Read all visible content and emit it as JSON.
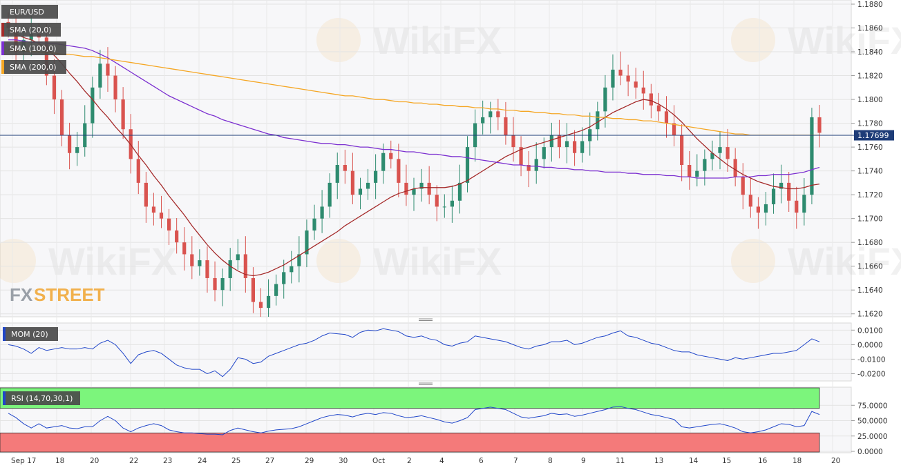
{
  "symbol": "EUR/USD",
  "logo": {
    "fx": "FX",
    "street": "STREET"
  },
  "watermark": "WikiFX",
  "indicators": {
    "sma20": {
      "label": "SMA (20,0)",
      "color": "#a52a2a"
    },
    "sma100": {
      "label": "SMA (100,0)",
      "color": "#7b2fd0"
    },
    "sma200": {
      "label": "SMA (200,0)",
      "color": "#f5a623"
    },
    "mom": {
      "label": "MOM (20)",
      "color": "#2046c9"
    },
    "rsi": {
      "label": "RSI (14,70,30,1)",
      "color": "#2046c9",
      "overbought_color": "#7cf57c",
      "oversold_color": "#f47a7a"
    }
  },
  "colors": {
    "up": "#2e8b6f",
    "down": "#d9534f",
    "current_price_line": "#1e3c78"
  },
  "current_price": {
    "label": "1.17699",
    "value": 1.17699
  },
  "x_labels": [
    "Sep 17",
    "18",
    "20",
    "22",
    "23",
    "24",
    "25",
    "27",
    "29",
    "30",
    "Oct",
    "2",
    "4",
    "6",
    "7",
    "8",
    "9",
    "11",
    "13",
    "14",
    "15",
    "16",
    "18",
    "20"
  ],
  "chart_data": [
    {
      "type": "candlestick",
      "title": "EUR/USD",
      "ylim": [
        1.161,
        1.188
      ],
      "y_ticks": [
        "1.1880",
        "1.1860",
        "1.1840",
        "1.1820",
        "1.1800",
        "1.1780",
        "1.1760",
        "1.1740",
        "1.1720",
        "1.1700",
        "1.1680",
        "1.1660",
        "1.1640",
        "1.1620"
      ],
      "grid": true,
      "close": [
        1.186,
        1.184,
        1.185,
        1.1855,
        1.1852,
        1.182,
        1.18,
        1.177,
        1.1755,
        1.176,
        1.178,
        1.181,
        1.183,
        1.182,
        1.18,
        1.1775,
        1.175,
        1.173,
        1.171,
        1.1705,
        1.17,
        1.169,
        1.168,
        1.167,
        1.166,
        1.1665,
        1.165,
        1.164,
        1.165,
        1.1665,
        1.167,
        1.165,
        1.163,
        1.1625,
        1.1635,
        1.1645,
        1.1655,
        1.166,
        1.167,
        1.169,
        1.17,
        1.171,
        1.173,
        1.1745,
        1.174,
        1.172,
        1.1725,
        1.173,
        1.174,
        1.1755,
        1.175,
        1.173,
        1.172,
        1.1725,
        1.173,
        1.172,
        1.171,
        1.171,
        1.1715,
        1.173,
        1.176,
        1.178,
        1.1785,
        1.179,
        1.1785,
        1.177,
        1.176,
        1.1745,
        1.174,
        1.175,
        1.176,
        1.177,
        1.176,
        1.1765,
        1.1755,
        1.1765,
        1.1775,
        1.179,
        1.181,
        1.1825,
        1.182,
        1.1815,
        1.181,
        1.1805,
        1.1795,
        1.179,
        1.178,
        1.177,
        1.1745,
        1.1735,
        1.174,
        1.175,
        1.1755,
        1.176,
        1.175,
        1.1735,
        1.172,
        1.171,
        1.1705,
        1.1712,
        1.1725,
        1.173,
        1.1715,
        1.1705,
        1.172,
        1.1785,
        1.1772
      ],
      "series": [
        {
          "name": "SMA (20,0)",
          "values": [
            1.1858,
            1.1855,
            1.1852,
            1.185,
            1.1847,
            1.1843,
            1.1837,
            1.183,
            1.1822,
            1.1815,
            1.1807,
            1.18,
            1.1792,
            1.1785,
            1.1777,
            1.177,
            1.1762,
            1.1753,
            1.1745,
            1.1736,
            1.1728,
            1.1719,
            1.1711,
            1.1703,
            1.1694,
            1.1686,
            1.1678,
            1.1671,
            1.1665,
            1.166,
            1.1656,
            1.1653,
            1.1652,
            1.1653,
            1.1655,
            1.1658,
            1.1661,
            1.1665,
            1.1669,
            1.1673,
            1.1677,
            1.1681,
            1.1685,
            1.1689,
            1.1694,
            1.1698,
            1.1702,
            1.1706,
            1.171,
            1.1714,
            1.1718,
            1.1721,
            1.1723,
            1.1725,
            1.1726,
            1.1726,
            1.1726,
            1.1726,
            1.1727,
            1.1729,
            1.1732,
            1.1736,
            1.174,
            1.1744,
            1.1748,
            1.1752,
            1.1755,
            1.1758,
            1.176,
            1.1762,
            1.1764,
            1.1766,
            1.1768,
            1.177,
            1.1772,
            1.1774,
            1.1777,
            1.1781,
            1.1785,
            1.1789,
            1.1792,
            1.1795,
            1.1798,
            1.18,
            1.1799,
            1.1796,
            1.1792,
            1.1787,
            1.1781,
            1.1774,
            1.1767,
            1.1761,
            1.1755,
            1.175,
            1.1745,
            1.1741,
            1.1737,
            1.1734,
            1.1731,
            1.1729,
            1.1727,
            1.1726,
            1.1725,
            1.1725,
            1.1726,
            1.1728,
            1.1729
          ]
        },
        {
          "name": "SMA (100,0)",
          "values": [
            1.185,
            1.185,
            1.1849,
            1.1848,
            1.1848,
            1.1847,
            1.1847,
            1.1846,
            1.1845,
            1.1844,
            1.1843,
            1.1841,
            1.1838,
            1.1835,
            1.1831,
            1.1827,
            1.1823,
            1.1819,
            1.1815,
            1.1811,
            1.1807,
            1.1803,
            1.18,
            1.1797,
            1.1794,
            1.1791,
            1.1788,
            1.1786,
            1.1783,
            1.1781,
            1.1779,
            1.1777,
            1.1775,
            1.1773,
            1.1771,
            1.177,
            1.1768,
            1.1767,
            1.1766,
            1.1765,
            1.1764,
            1.1763,
            1.1763,
            1.1762,
            1.1762,
            1.1761,
            1.176,
            1.176,
            1.1759,
            1.1758,
            1.1758,
            1.1757,
            1.1756,
            1.1756,
            1.1755,
            1.1754,
            1.1754,
            1.1753,
            1.1752,
            1.1752,
            1.1751,
            1.175,
            1.1749,
            1.1748,
            1.1747,
            1.1746,
            1.1745,
            1.1745,
            1.1744,
            1.1744,
            1.1743,
            1.1743,
            1.1742,
            1.1742,
            1.1741,
            1.1741,
            1.174,
            1.174,
            1.1739,
            1.1739,
            1.1739,
            1.1738,
            1.1738,
            1.1737,
            1.1737,
            1.1737,
            1.1736,
            1.1736,
            1.1735,
            1.1735,
            1.1734,
            1.1734,
            1.1734,
            1.1734,
            1.1734,
            1.1735,
            1.1735,
            1.1735,
            1.1736,
            1.1736,
            1.1737,
            1.1737,
            1.1737,
            1.1738,
            1.1739,
            1.1741,
            1.1743
          ]
        },
        {
          "name": "SMA (200,0)",
          "values": [
            1.1842,
            1.1841,
            1.1841,
            1.184,
            1.184,
            1.1839,
            1.1839,
            1.1838,
            1.1838,
            1.1837,
            1.1836,
            1.1836,
            1.1835,
            1.1834,
            1.1833,
            1.1832,
            1.1831,
            1.183,
            1.1829,
            1.1828,
            1.1827,
            1.1826,
            1.1825,
            1.1824,
            1.1823,
            1.1822,
            1.1821,
            1.182,
            1.1819,
            1.1818,
            1.1817,
            1.1816,
            1.1815,
            1.1814,
            1.1813,
            1.1812,
            1.1811,
            1.181,
            1.1809,
            1.1808,
            1.1807,
            1.1806,
            1.1805,
            1.1804,
            1.1803,
            1.1803,
            1.1802,
            1.1801,
            1.18,
            1.18,
            1.1799,
            1.1798,
            1.1798,
            1.1797,
            1.1797,
            1.1796,
            1.1796,
            1.1795,
            1.1795,
            1.1794,
            1.1794,
            1.1793,
            1.1793,
            1.1792,
            1.1792,
            1.1791,
            1.1791,
            1.179,
            1.179,
            1.1789,
            1.1789,
            1.1788,
            1.1788,
            1.1787,
            1.1787,
            1.1786,
            1.1786,
            1.1785,
            1.1785,
            1.1784,
            1.1784,
            1.1783,
            1.1783,
            1.1782,
            1.1782,
            1.1781,
            1.178,
            1.1779,
            1.1778,
            1.1777,
            1.1776,
            1.1775,
            1.1774,
            1.1773,
            1.1772,
            1.1771,
            1.1771,
            1.177,
            1.177,
            1.177,
            1.177,
            1.177,
            1.177,
            1.177,
            1.177,
            1.177,
            1.177
          ]
        }
      ]
    },
    {
      "type": "line",
      "title": "MOM (20)",
      "ylim": [
        -0.025,
        0.013
      ],
      "y_ticks": [
        "0.0100",
        "0.0000",
        "-0.0100",
        "-0.0200"
      ],
      "series": [
        {
          "name": "MOM (20)",
          "values": [
            0.0,
            -0.001,
            -0.003,
            -0.006,
            -0.002,
            -0.004,
            -0.003,
            -0.002,
            -0.003,
            -0.003,
            -0.002,
            -0.003,
            0.001,
            0.003,
            0.0,
            -0.006,
            -0.013,
            -0.007,
            -0.005,
            -0.004,
            -0.006,
            -0.01,
            -0.014,
            -0.016,
            -0.017,
            -0.017,
            -0.02,
            -0.018,
            -0.022,
            -0.017,
            -0.009,
            -0.01,
            -0.013,
            -0.012,
            -0.008,
            -0.006,
            -0.004,
            -0.002,
            0.0,
            0.001,
            0.003,
            0.006,
            0.008,
            0.0075,
            0.007,
            0.005,
            0.0085,
            0.01,
            0.0095,
            0.011,
            0.01,
            0.009,
            0.006,
            0.005,
            0.006,
            0.004,
            0.003,
            0.0,
            -0.001,
            0.001,
            0.002,
            0.006,
            0.005,
            0.004,
            0.003,
            0.002,
            0.0,
            -0.002,
            -0.003,
            -0.001,
            0.0,
            0.002,
            0.002,
            0.003,
            0.0,
            0.001,
            0.003,
            0.005,
            0.006,
            0.008,
            0.0095,
            0.006,
            0.005,
            0.003,
            0.001,
            0.0,
            -0.002,
            -0.004,
            -0.005,
            -0.005,
            -0.007,
            -0.008,
            -0.009,
            -0.01,
            -0.011,
            -0.009,
            -0.01,
            -0.009,
            -0.008,
            -0.007,
            -0.006,
            -0.006,
            -0.005,
            -0.004,
            0.0,
            0.004,
            0.002
          ]
        }
      ]
    },
    {
      "type": "line",
      "title": "RSI (14,70,30,1)",
      "ylim": [
        0,
        100
      ],
      "y_ticks": [
        "75.0000",
        "50.0000",
        "25.0000",
        "0.0000"
      ],
      "levels": [
        30,
        70
      ],
      "series": [
        {
          "name": "RSI (14,70,30,1)",
          "values": [
            62,
            55,
            45,
            38,
            45,
            38,
            40,
            42,
            38,
            37,
            40,
            40,
            50,
            57,
            50,
            38,
            32,
            38,
            42,
            45,
            42,
            35,
            32,
            30,
            30,
            29,
            28,
            28,
            27,
            34,
            38,
            35,
            32,
            30,
            33,
            35,
            36,
            37,
            40,
            45,
            50,
            55,
            58,
            60,
            59,
            56,
            60,
            62,
            60,
            63,
            62,
            58,
            55,
            56,
            58,
            55,
            52,
            48,
            46,
            50,
            55,
            68,
            70,
            72,
            70,
            68,
            62,
            56,
            54,
            56,
            58,
            62,
            60,
            61,
            57,
            59,
            62,
            65,
            68,
            72,
            73,
            70,
            68,
            64,
            60,
            58,
            55,
            52,
            40,
            38,
            40,
            42,
            44,
            45,
            42,
            38,
            32,
            30,
            32,
            35,
            40,
            45,
            44,
            40,
            42,
            65,
            60
          ]
        }
      ]
    }
  ]
}
